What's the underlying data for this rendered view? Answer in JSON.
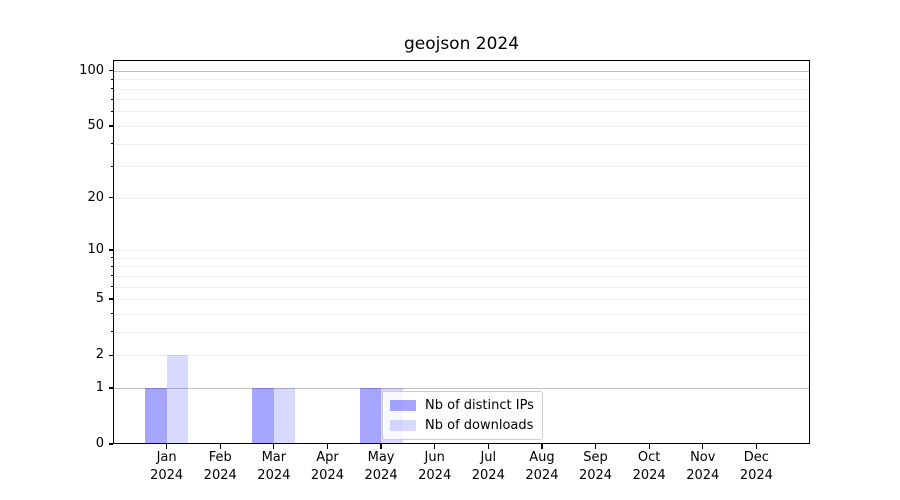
{
  "chart_data": {
    "type": "bar",
    "title": "geojson 2024",
    "categories": [
      "Jan 2024",
      "Feb 2024",
      "Mar 2024",
      "Apr 2024",
      "May 2024",
      "Jun 2024",
      "Jul 2024",
      "Aug 2024",
      "Sep 2024",
      "Oct 2024",
      "Nov 2024",
      "Dec 2024"
    ],
    "months": [
      "Jan",
      "Feb",
      "Mar",
      "Apr",
      "May",
      "Jun",
      "Jul",
      "Aug",
      "Sep",
      "Oct",
      "Nov",
      "Dec"
    ],
    "year": "2024",
    "series": [
      {
        "name": "Nb of distinct IPs",
        "values": [
          1,
          0,
          1,
          0,
          1,
          0,
          0,
          0,
          0,
          0,
          0,
          0
        ],
        "color": "rgba(0,0,255,0.35)"
      },
      {
        "name": "Nb of downloads",
        "values": [
          2,
          0,
          1,
          0,
          1,
          0,
          0,
          0,
          0,
          0,
          0,
          0
        ],
        "color": "rgba(0,0,255,0.15)"
      }
    ],
    "xlabel": "",
    "ylabel": "",
    "yscale": "log1p",
    "ylim": [
      0,
      114.3
    ],
    "y_major_ticks": [
      0,
      1,
      2,
      5,
      10,
      20,
      50,
      100
    ],
    "y_minor_ticks": [
      3,
      4,
      6,
      7,
      8,
      9,
      30,
      40,
      60,
      70,
      80,
      90
    ],
    "emphasized_gridlines": [
      1,
      100
    ],
    "grid": "both",
    "legend_position": "inside-bottom-center-right"
  },
  "legend": {
    "items": [
      {
        "label": "Nb of distinct IPs",
        "color": "rgba(0,0,255,0.35)"
      },
      {
        "label": "Nb of downloads",
        "color": "rgba(0,0,255,0.15)"
      }
    ]
  },
  "colors": {
    "background": "#ffffff",
    "spine": "#000000",
    "grid_minor": "#ededed",
    "grid_major": "#ededed",
    "grid_emphasized": "#c2c2c2",
    "tick_label": "#000000",
    "bar_distinct_ips": "rgba(0,0,255,0.35)",
    "bar_downloads": "rgba(0,0,255,0.15)",
    "legend_border": "#cccccc",
    "legend_bg": "rgba(255,255,255,0.8)"
  }
}
